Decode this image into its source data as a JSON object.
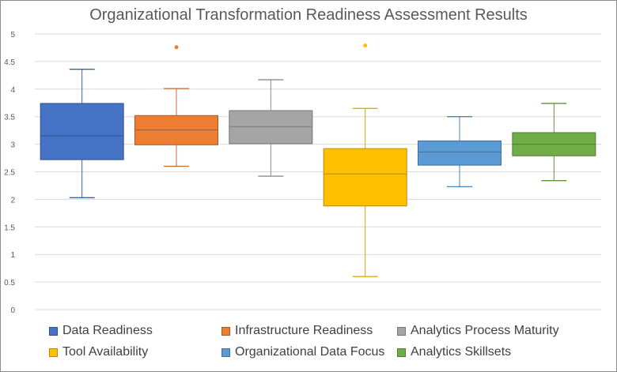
{
  "chart_data": {
    "type": "box",
    "title": "Organizational Transformation Readiness Assessment Results",
    "xlabel": "",
    "ylabel": "",
    "ylim": [
      0,
      5
    ],
    "yticks": [
      "0",
      "0.5",
      "1",
      "1.5",
      "2",
      "2.5",
      "3",
      "3.5",
      "4",
      "4.5",
      "5"
    ],
    "grid": true,
    "legend_position": "bottom",
    "series": [
      {
        "name": "Data Readiness",
        "color": "#4472C4",
        "min": 2.03,
        "q1": 2.72,
        "median": 3.15,
        "q3": 3.74,
        "max": 4.36,
        "outliers": []
      },
      {
        "name": "Infrastructure Readiness",
        "color": "#ED7D31",
        "min": 2.6,
        "q1": 2.99,
        "median": 3.26,
        "q3": 3.52,
        "max": 4.01,
        "outliers": [
          4.76
        ]
      },
      {
        "name": "Analytics Process Maturity",
        "color": "#A5A5A5",
        "min": 2.42,
        "q1": 3.01,
        "median": 3.32,
        "q3": 3.61,
        "max": 4.17,
        "outliers": []
      },
      {
        "name": "Tool Availability",
        "color": "#FFC000",
        "min": 0.6,
        "q1": 1.88,
        "median": 2.46,
        "q3": 2.92,
        "max": 3.65,
        "outliers": [
          4.79
        ]
      },
      {
        "name": "Organizational Data Focus",
        "color": "#5B9BD5",
        "min": 2.23,
        "q1": 2.62,
        "median": 2.86,
        "q3": 3.06,
        "max": 3.5,
        "outliers": []
      },
      {
        "name": "Analytics Skillsets",
        "color": "#70AD47",
        "min": 2.34,
        "q1": 2.79,
        "median": 3.0,
        "q3": 3.21,
        "max": 3.74,
        "outliers": []
      }
    ]
  }
}
